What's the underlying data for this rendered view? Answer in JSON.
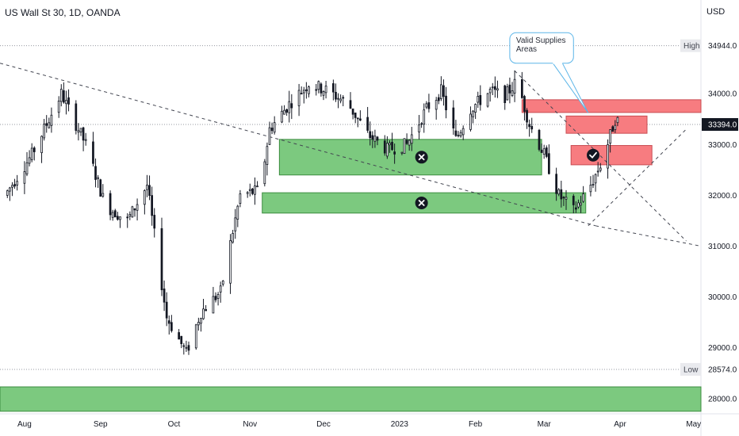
{
  "header": {
    "title": "US Wall St 30, 1D, OANDA",
    "currency": "USD"
  },
  "chart_data": {
    "type": "candlestick",
    "symbol": "US Wall St 30",
    "interval": "1D",
    "source": "OANDA",
    "currency": "USD",
    "ylim": [
      27700,
      35500
    ],
    "y_ticks": [
      "34000.0",
      "33000.0",
      "32000.0",
      "31000.0",
      "30000.0",
      "29000.0",
      "28000.0"
    ],
    "x_ticks": [
      {
        "label": "Aug",
        "t": 0
      },
      {
        "label": "Sep",
        "t": 31
      },
      {
        "label": "Oct",
        "t": 61
      },
      {
        "label": "Nov",
        "t": 92
      },
      {
        "label": "Dec",
        "t": 122
      },
      {
        "label": "2023",
        "t": 153
      },
      {
        "label": "Feb",
        "t": 184
      },
      {
        "label": "Mar",
        "t": 212
      },
      {
        "label": "Apr",
        "t": 243
      },
      {
        "label": "May",
        "t": 273
      }
    ],
    "x_range": [
      -10,
      276
    ],
    "price_labels": [
      {
        "tag": "High",
        "value": "34944.0",
        "v": 34944
      },
      {
        "tag": "",
        "value": "33394.0",
        "v": 33394,
        "current": true
      },
      {
        "tag": "Low",
        "value": "28574.0",
        "v": 28574
      }
    ],
    "anchors": [
      {
        "t": -8,
        "c": 32000
      },
      {
        "t": 3,
        "c": 32800
      },
      {
        "t": 15,
        "c": 34000
      },
      {
        "t": 25,
        "c": 33000
      },
      {
        "t": 33,
        "c": 31800
      },
      {
        "t": 42,
        "c": 31500
      },
      {
        "t": 50,
        "c": 32200
      },
      {
        "t": 58,
        "c": 29600
      },
      {
        "t": 66,
        "c": 28900
      },
      {
        "t": 72,
        "c": 29700
      },
      {
        "t": 80,
        "c": 30100
      },
      {
        "t": 88,
        "c": 32000
      },
      {
        "t": 96,
        "c": 32100
      },
      {
        "t": 100,
        "c": 33300
      },
      {
        "t": 108,
        "c": 33800
      },
      {
        "t": 116,
        "c": 34200
      },
      {
        "t": 124,
        "c": 34050
      },
      {
        "t": 132,
        "c": 33800
      },
      {
        "t": 140,
        "c": 33200
      },
      {
        "t": 148,
        "c": 32900
      },
      {
        "t": 156,
        "c": 33000
      },
      {
        "t": 164,
        "c": 33700
      },
      {
        "t": 170,
        "c": 34050
      },
      {
        "t": 176,
        "c": 33100
      },
      {
        "t": 182,
        "c": 33700
      },
      {
        "t": 190,
        "c": 34050
      },
      {
        "t": 196,
        "c": 33950
      },
      {
        "t": 201,
        "c": 34250
      },
      {
        "t": 206,
        "c": 33400
      },
      {
        "t": 212,
        "c": 32800
      },
      {
        "t": 218,
        "c": 32000
      },
      {
        "t": 224,
        "c": 31700
      },
      {
        "t": 230,
        "c": 32100
      },
      {
        "t": 236,
        "c": 32700
      },
      {
        "t": 241,
        "c": 33500
      },
      {
        "t": 244,
        "c": 33394
      }
    ],
    "zones": [
      {
        "kind": "demand",
        "t0": 104,
        "t1": 211,
        "y0": 33100,
        "y1": 32400,
        "color": "#7cc97f",
        "border": "#3c8d40",
        "marker": "cross",
        "mt": 162
      },
      {
        "kind": "demand",
        "t0": 97,
        "t1": 229,
        "y0": 32050,
        "y1": 31650,
        "color": "#7cc97f",
        "border": "#3c8d40",
        "marker": "cross",
        "mt": 162
      },
      {
        "kind": "supply",
        "t0": 203,
        "t1": 276,
        "y0": 33880,
        "y1": 33630,
        "color": "#f77c80",
        "border": "#c94c52"
      },
      {
        "kind": "supply",
        "t0": 221,
        "t1": 254,
        "y0": 33560,
        "y1": 33220,
        "color": "#f77c80",
        "border": "#c94c52"
      },
      {
        "kind": "supply",
        "t0": 223,
        "t1": 256,
        "y0": 32980,
        "y1": 32600,
        "color": "#f77c80",
        "border": "#c94c52",
        "marker": "check",
        "mt": 232
      },
      {
        "kind": "demand",
        "t0": -10,
        "t1": 276,
        "y0": 28230,
        "y1": 27750,
        "color": "#7cc97f",
        "border": "#3c8d40"
      }
    ],
    "trendlines": [
      {
        "t0": -10,
        "v0": 34600,
        "t1": 233,
        "v1": 31400
      },
      {
        "t0": 200,
        "v0": 34450,
        "t1": 270,
        "v1": 31100
      },
      {
        "t0": 233,
        "v0": 31400,
        "t1": 276,
        "v1": 31000
      },
      {
        "t0": 230,
        "v0": 31400,
        "t1": 270,
        "v1": 33300
      }
    ],
    "callout": {
      "lines": [
        "Valid Supplies",
        "Areas"
      ],
      "t0": 198,
      "t1": 224,
      "v0": 35200,
      "v1": 34600,
      "pt": 230,
      "pv": 33620
    }
  }
}
